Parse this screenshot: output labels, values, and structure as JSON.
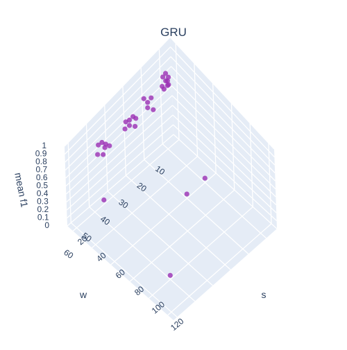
{
  "chart_data": {
    "type": "scatter3d",
    "title": "GRU",
    "axes": {
      "x": {
        "label": "s",
        "ticks": [
          "20",
          "40",
          "60",
          "80",
          "100",
          "120"
        ]
      },
      "y": {
        "label": "w",
        "ticks": [
          "10",
          "20",
          "30",
          "40",
          "50",
          "60"
        ]
      },
      "z": {
        "label": "mean f1",
        "ticks": [
          "0",
          "0.1",
          "0.2",
          "0.3",
          "0.4",
          "0.5",
          "0.6",
          "0.7",
          "0.8",
          "0.9",
          "1"
        ]
      }
    },
    "grid": true,
    "marker_color": "#9b30b4",
    "scene_bg": "#e5ecf6",
    "points": [
      {
        "s": 20,
        "w": 10,
        "f1": 0.72
      },
      {
        "s": 22,
        "w": 10,
        "f1": 0.74
      },
      {
        "s": 18,
        "w": 9,
        "f1": 0.76
      },
      {
        "s": 20,
        "w": 12,
        "f1": 0.7
      },
      {
        "s": 24,
        "w": 11,
        "f1": 0.73
      },
      {
        "s": 21,
        "w": 9,
        "f1": 0.75
      },
      {
        "s": 19,
        "w": 11,
        "f1": 0.77
      },
      {
        "s": 23,
        "w": 10,
        "f1": 0.71
      },
      {
        "s": 22,
        "w": 12,
        "f1": 0.69
      },
      {
        "s": 20,
        "w": 20,
        "f1": 0.68
      },
      {
        "s": 24,
        "w": 22,
        "f1": 0.7
      },
      {
        "s": 18,
        "w": 21,
        "f1": 0.72
      },
      {
        "s": 26,
        "w": 20,
        "f1": 0.66
      },
      {
        "s": 22,
        "w": 19,
        "f1": 0.73
      },
      {
        "s": 20,
        "w": 30,
        "f1": 0.68
      },
      {
        "s": 24,
        "w": 32,
        "f1": 0.7
      },
      {
        "s": 18,
        "w": 31,
        "f1": 0.66
      },
      {
        "s": 22,
        "w": 29,
        "f1": 0.72
      },
      {
        "s": 26,
        "w": 30,
        "f1": 0.67
      },
      {
        "s": 21,
        "w": 33,
        "f1": 0.65
      },
      {
        "s": 23,
        "w": 28,
        "f1": 0.69
      },
      {
        "s": 20,
        "w": 45,
        "f1": 0.73
      },
      {
        "s": 23,
        "w": 45,
        "f1": 0.7
      },
      {
        "s": 22,
        "w": 44,
        "f1": 0.71
      },
      {
        "s": 25,
        "w": 47,
        "f1": 0.68
      },
      {
        "s": 18,
        "w": 46,
        "f1": 0.7
      },
      {
        "s": 21,
        "w": 48,
        "f1": 0.66
      },
      {
        "s": 24,
        "w": 43,
        "f1": 0.69
      },
      {
        "s": 60,
        "w": 20,
        "f1": 0.05
      },
      {
        "s": 100,
        "w": 50,
        "f1": 0.05
      },
      {
        "s": 60,
        "w": 10,
        "f1": 0.05
      },
      {
        "s": 20,
        "w": 45,
        "f1": 0.05
      }
    ]
  }
}
